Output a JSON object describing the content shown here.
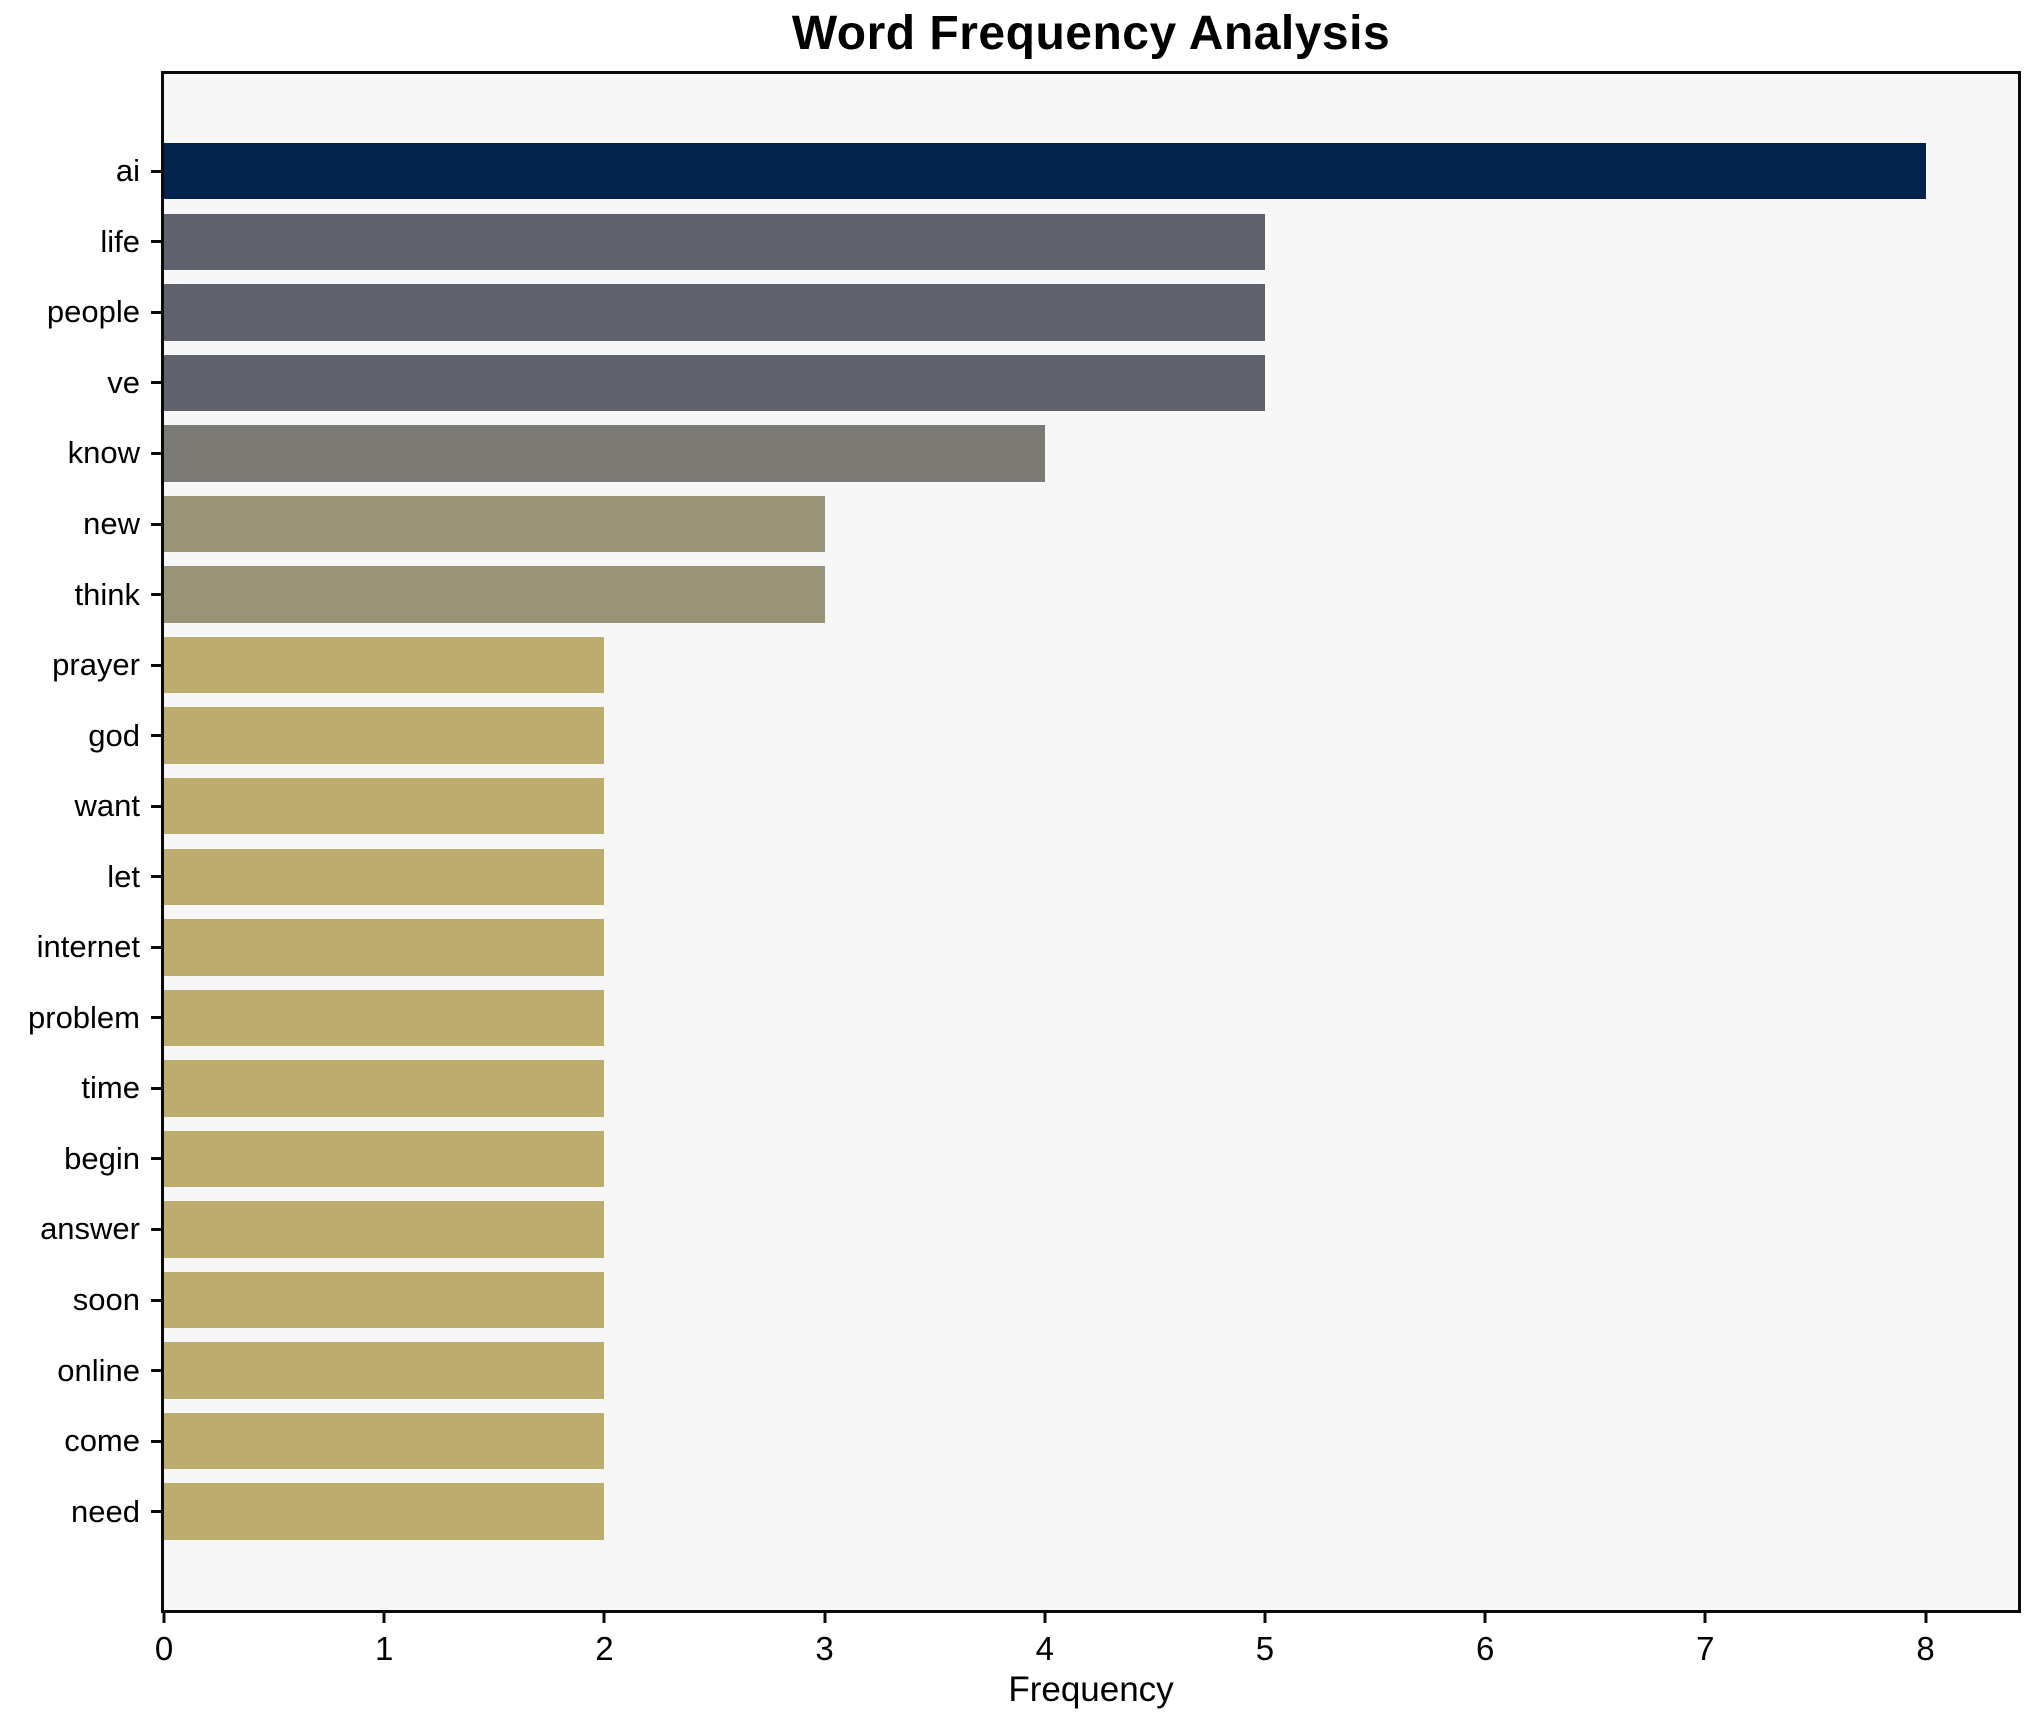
{
  "title": "Word Frequency Analysis",
  "xlabel": "Frequency",
  "chart_data": {
    "type": "bar",
    "orientation": "horizontal",
    "title": "Word Frequency Analysis",
    "xlabel": "Frequency",
    "ylabel": "",
    "categories": [
      "ai",
      "life",
      "people",
      "ve",
      "know",
      "new",
      "think",
      "prayer",
      "god",
      "want",
      "let",
      "internet",
      "problem",
      "time",
      "begin",
      "answer",
      "soon",
      "online",
      "come",
      "need"
    ],
    "values": [
      8,
      5,
      5,
      5,
      4,
      3,
      3,
      2,
      2,
      2,
      2,
      2,
      2,
      2,
      2,
      2,
      2,
      2,
      2,
      2
    ],
    "xlim": [
      0,
      8.42
    ],
    "xticks": [
      0,
      1,
      2,
      3,
      4,
      5,
      6,
      7,
      8
    ],
    "grid": false,
    "legend": "none",
    "plot_background": "#f7f7f8",
    "spine_color": "#0a0a0a",
    "bar_colors_by_value": {
      "8": "#04234c",
      "5": "#5f626d",
      "4": "#7b7a74",
      "3": "#999377",
      "2": "#bcad6e"
    }
  }
}
